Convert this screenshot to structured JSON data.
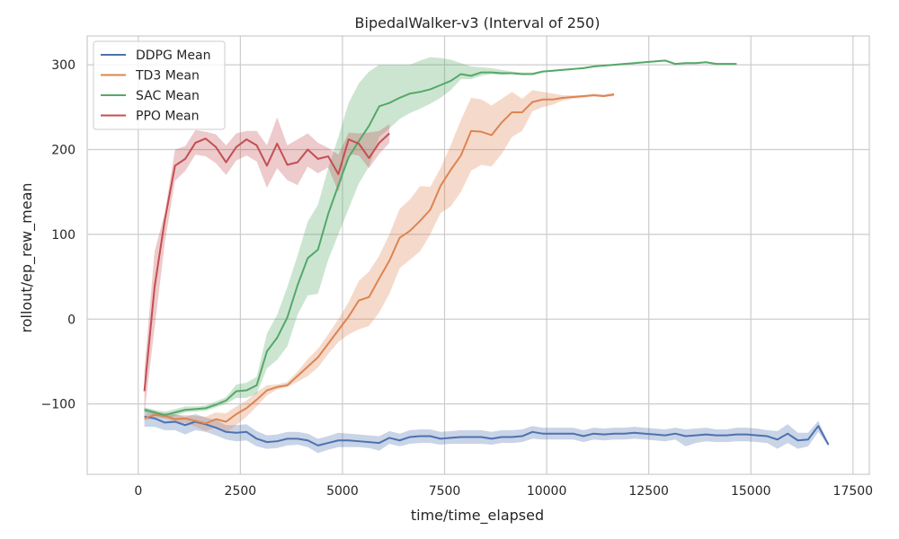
{
  "chart_data": {
    "type": "line",
    "title": "BipedalWalker-v3 (Interval of 250)",
    "xlabel": "time/time_elapsed",
    "ylabel": "rollout/ep_rew_mean",
    "xlim": [
      -1250,
      17900
    ],
    "ylim": [
      -183,
      334
    ],
    "xticks": [
      0,
      2500,
      5000,
      7500,
      10000,
      12500,
      15000,
      17500
    ],
    "xtick_labels": [
      "0",
      "2500",
      "5000",
      "7500",
      "10000",
      "12500",
      "15000",
      "17500"
    ],
    "yticks": [
      -100,
      0,
      100,
      200,
      300
    ],
    "ytick_labels": [
      "−100",
      "0",
      "100",
      "200",
      "300"
    ],
    "grid": true,
    "legend_position": "top-left",
    "series": [
      {
        "name": "DDPG Mean",
        "color": "#4c72b0",
        "x": [
          150,
          400,
          650,
          900,
          1150,
          1400,
          1650,
          1900,
          2150,
          2400,
          2650,
          2900,
          3150,
          3400,
          3650,
          3900,
          4150,
          4400,
          4650,
          4900,
          5150,
          5400,
          5650,
          5900,
          6150,
          6400,
          6650,
          6900,
          7150,
          7400,
          7650,
          7900,
          8150,
          8400,
          8650,
          8900,
          9150,
          9400,
          9650,
          9900,
          10150,
          10400,
          10650,
          10900,
          11150,
          11400,
          11650,
          11900,
          12150,
          12400,
          12650,
          12900,
          13150,
          13400,
          13650,
          13900,
          14150,
          14400,
          14650,
          14900,
          15150,
          15400,
          15650,
          15900,
          16150,
          16400,
          16650,
          16900
        ],
        "y": [
          -115,
          -117,
          -122,
          -121,
          -125,
          -121,
          -124,
          -128,
          -133,
          -134,
          -133,
          -141,
          -145,
          -144,
          -141,
          -141,
          -143,
          -149,
          -146,
          -143,
          -143,
          -144,
          -145,
          -146,
          -140,
          -143,
          -139,
          -138,
          -138,
          -141,
          -140,
          -139,
          -139,
          -139,
          -141,
          -139,
          -139,
          -138,
          -133,
          -135,
          -135,
          -135,
          -135,
          -138,
          -135,
          -136,
          -135,
          -135,
          -134,
          -135,
          -136,
          -137,
          -135,
          -138,
          -137,
          -136,
          -137,
          -137,
          -136,
          -136,
          -137,
          -138,
          -142,
          -135,
          -143,
          -142,
          -126,
          -148
        ],
        "lower": [
          -127,
          -127,
          -131,
          -131,
          -136,
          -131,
          -133,
          -137,
          -142,
          -144,
          -143,
          -150,
          -153,
          -152,
          -149,
          -148,
          -151,
          -158,
          -154,
          -151,
          -151,
          -151,
          -152,
          -155,
          -147,
          -150,
          -147,
          -146,
          -146,
          -148,
          -147,
          -147,
          -147,
          -147,
          -148,
          -146,
          -146,
          -145,
          -141,
          -142,
          -142,
          -142,
          -142,
          -145,
          -142,
          -143,
          -142,
          -142,
          -141,
          -142,
          -143,
          -144,
          -142,
          -150,
          -146,
          -144,
          -145,
          -145,
          -144,
          -144,
          -145,
          -146,
          -153,
          -146,
          -153,
          -150,
          -133,
          -150
        ],
        "upper": [
          -105,
          -108,
          -113,
          -112,
          -115,
          -112,
          -116,
          -119,
          -125,
          -125,
          -124,
          -132,
          -137,
          -136,
          -133,
          -133,
          -135,
          -141,
          -138,
          -134,
          -135,
          -136,
          -137,
          -138,
          -132,
          -135,
          -131,
          -130,
          -130,
          -133,
          -132,
          -131,
          -131,
          -131,
          -133,
          -131,
          -131,
          -130,
          -126,
          -128,
          -128,
          -128,
          -128,
          -131,
          -128,
          -129,
          -128,
          -128,
          -127,
          -128,
          -129,
          -130,
          -128,
          -130,
          -129,
          -128,
          -130,
          -130,
          -128,
          -128,
          -129,
          -131,
          -132,
          -124,
          -134,
          -134,
          -120,
          -146
        ]
      },
      {
        "name": "TD3 Mean",
        "color": "#dd8452",
        "x": [
          150,
          400,
          650,
          900,
          1150,
          1400,
          1650,
          1900,
          2150,
          2400,
          2650,
          2900,
          3150,
          3400,
          3650,
          3900,
          4150,
          4400,
          4650,
          4900,
          5150,
          5400,
          5650,
          5900,
          6150,
          6400,
          6650,
          6900,
          7150,
          7400,
          7650,
          7900,
          8150,
          8400,
          8650,
          8900,
          9150,
          9400,
          9650,
          9900,
          10150,
          10400,
          10650,
          10900,
          11150,
          11400,
          11650
        ],
        "y": [
          -117,
          -113,
          -114,
          -118,
          -117,
          -120,
          -123,
          -118,
          -121,
          -112,
          -105,
          -95,
          -84,
          -80,
          -78,
          -67,
          -56,
          -45,
          -29,
          -13,
          3,
          22,
          26,
          48,
          69,
          96,
          104,
          116,
          129,
          157,
          176,
          193,
          222,
          221,
          217,
          232,
          244,
          244,
          256,
          259,
          259,
          261,
          262,
          263,
          264,
          263,
          265
        ],
        "lower": [
          -120,
          -116,
          -117,
          -122,
          -122,
          -127,
          -132,
          -128,
          -134,
          -125,
          -115,
          -103,
          -90,
          -83,
          -80,
          -74,
          -67,
          -57,
          -41,
          -27,
          -18,
          -12,
          -8,
          8,
          30,
          60,
          70,
          80,
          100,
          125,
          133,
          150,
          175,
          182,
          180,
          195,
          215,
          222,
          245,
          250,
          253,
          258,
          260,
          261,
          263,
          262,
          263
        ],
        "upper": [
          -112,
          -110,
          -110,
          -113,
          -113,
          -114,
          -115,
          -110,
          -111,
          -103,
          -96,
          -86,
          -78,
          -77,
          -74,
          -62,
          -47,
          -35,
          -18,
          0,
          20,
          45,
          56,
          75,
          100,
          130,
          141,
          157,
          156,
          178,
          205,
          235,
          261,
          259,
          252,
          260,
          268,
          260,
          270,
          268,
          266,
          264,
          264,
          264,
          266,
          265,
          267
        ]
      },
      {
        "name": "SAC Mean",
        "color": "#55a868",
        "x": [
          150,
          400,
          650,
          900,
          1150,
          1400,
          1650,
          1900,
          2150,
          2400,
          2650,
          2900,
          3150,
          3400,
          3650,
          3900,
          4150,
          4400,
          4650,
          4900,
          5150,
          5400,
          5650,
          5900,
          6150,
          6400,
          6650,
          6900,
          7150,
          7400,
          7650,
          7900,
          8150,
          8400,
          8650,
          8900,
          9150,
          9400,
          9650,
          9900,
          10150,
          10400,
          10650,
          10900,
          11150,
          11400,
          11650,
          11900,
          12150,
          12400,
          12650,
          12900,
          13150,
          13400,
          13650,
          13900,
          14150,
          14400,
          14650
        ],
        "y": [
          -107,
          -110,
          -113,
          -110,
          -107,
          -106,
          -105,
          -101,
          -96,
          -85,
          -84,
          -78,
          -38,
          -22,
          2,
          40,
          72,
          82,
          124,
          158,
          191,
          210,
          228,
          251,
          255,
          261,
          266,
          268,
          271,
          276,
          281,
          289,
          287,
          291,
          291,
          290,
          290,
          289,
          289,
          292,
          293,
          294,
          295,
          296,
          298,
          299,
          300,
          301,
          302,
          303,
          304,
          305,
          301,
          302,
          302,
          303,
          301,
          301,
          301
        ],
        "lower": [
          -110,
          -113,
          -117,
          -114,
          -110,
          -109,
          -108,
          -104,
          -100,
          -93,
          -93,
          -88,
          -58,
          -48,
          -32,
          5,
          28,
          30,
          70,
          100,
          130,
          160,
          180,
          215,
          225,
          236,
          243,
          248,
          254,
          261,
          270,
          283,
          283,
          287,
          289,
          288,
          289,
          288,
          288,
          291,
          292,
          293,
          294,
          295,
          297,
          298,
          299,
          300,
          301,
          302,
          303,
          304,
          300,
          301,
          301,
          302,
          300,
          300,
          300
        ],
        "upper": [
          -104,
          -107,
          -109,
          -106,
          -103,
          -103,
          -102,
          -97,
          -92,
          -77,
          -75,
          -68,
          -17,
          5,
          38,
          75,
          115,
          135,
          178,
          215,
          255,
          278,
          292,
          300,
          300,
          300,
          300,
          305,
          309,
          308,
          306,
          302,
          298,
          297,
          296,
          294,
          292,
          291,
          291,
          293,
          294,
          295,
          296,
          297,
          299,
          300,
          301,
          302,
          303,
          304,
          305,
          306,
          302,
          303,
          303,
          304,
          302,
          302,
          302
        ]
      },
      {
        "name": "PPO Mean",
        "color": "#c44e52",
        "x": [
          150,
          400,
          650,
          900,
          1150,
          1400,
          1650,
          1900,
          2150,
          2400,
          2650,
          2900,
          3150,
          3400,
          3650,
          3900,
          4150,
          4400,
          4650,
          4900,
          5150,
          5400,
          5650,
          5900,
          6150
        ],
        "y": [
          -85,
          38,
          117,
          181,
          189,
          208,
          213,
          203,
          185,
          203,
          212,
          205,
          181,
          207,
          182,
          185,
          200,
          189,
          192,
          171,
          212,
          207,
          190,
          208,
          219
        ],
        "lower": [
          -112,
          -10,
          90,
          163,
          175,
          194,
          192,
          184,
          170,
          187,
          193,
          186,
          155,
          178,
          164,
          158,
          180,
          172,
          179,
          150,
          195,
          193,
          178,
          195,
          208
        ],
        "upper": [
          -60,
          80,
          125,
          200,
          204,
          223,
          221,
          218,
          205,
          219,
          222,
          222,
          205,
          238,
          205,
          212,
          219,
          208,
          202,
          194,
          220,
          219,
          220,
          222,
          230
        ]
      }
    ]
  }
}
